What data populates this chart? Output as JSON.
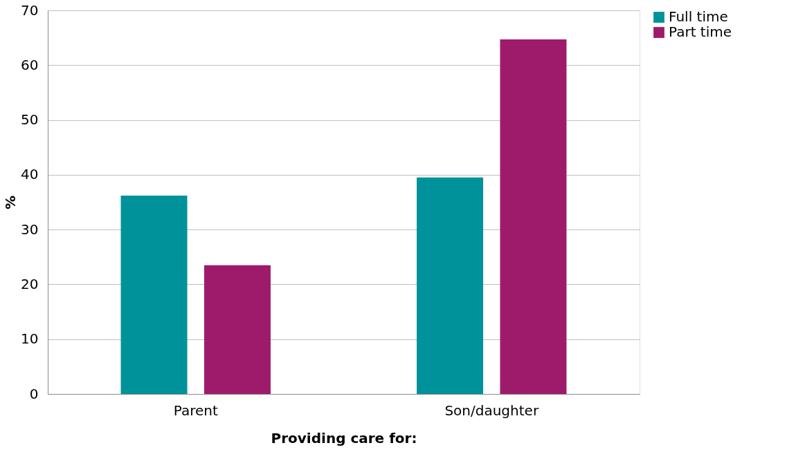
{
  "chart_data": {
    "type": "bar",
    "xlabel": "Providing care for:",
    "ylabel": "%",
    "categories": [
      "Parent",
      "Son/daughter"
    ],
    "series": [
      {
        "name": "Full time",
        "color": "#00929a",
        "values": [
          36.2,
          39.5
        ]
      },
      {
        "name": "Part time",
        "color": "#9e1b6b",
        "values": [
          23.5,
          64.7
        ]
      }
    ],
    "ylim": [
      0,
      70
    ],
    "yticks": [
      0,
      10,
      20,
      30,
      40,
      50,
      60,
      70
    ],
    "grid": "y",
    "legend": "right"
  }
}
